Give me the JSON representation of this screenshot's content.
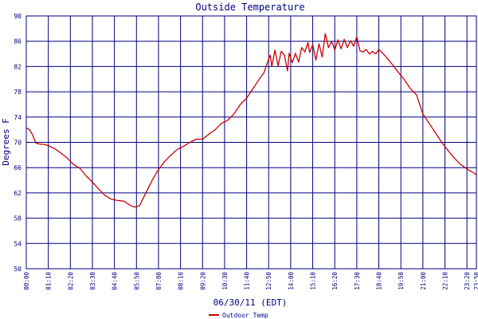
{
  "chart_data": {
    "type": "line",
    "title": "Outside Temperature",
    "xlabel": "06/30/11 (EDT)",
    "ylabel": "Degrees F",
    "ylim": [
      50,
      90
    ],
    "yticks": [
      50,
      54,
      58,
      62,
      66,
      70,
      74,
      78,
      82,
      86,
      90
    ],
    "xlim": [
      0,
      1430
    ],
    "xticks": [
      {
        "min": 0,
        "label": "00:00"
      },
      {
        "min": 70,
        "label": "01:10"
      },
      {
        "min": 140,
        "label": "02:20"
      },
      {
        "min": 210,
        "label": "03:30"
      },
      {
        "min": 280,
        "label": "04:40"
      },
      {
        "min": 350,
        "label": "05:50"
      },
      {
        "min": 420,
        "label": "07:00"
      },
      {
        "min": 490,
        "label": "08:10"
      },
      {
        "min": 560,
        "label": "09:20"
      },
      {
        "min": 630,
        "label": "10:30"
      },
      {
        "min": 700,
        "label": "11:40"
      },
      {
        "min": 770,
        "label": "12:50"
      },
      {
        "min": 840,
        "label": "14:00"
      },
      {
        "min": 910,
        "label": "15:10"
      },
      {
        "min": 980,
        "label": "16:20"
      },
      {
        "min": 1050,
        "label": "17:30"
      },
      {
        "min": 1120,
        "label": "18:40"
      },
      {
        "min": 1190,
        "label": "19:50"
      },
      {
        "min": 1260,
        "label": "21:00"
      },
      {
        "min": 1330,
        "label": "22:10"
      },
      {
        "min": 1400,
        "label": "23:20"
      },
      {
        "min": 1430,
        "label": "23:50"
      }
    ],
    "grid": true,
    "legend_position": "bottom-center",
    "colors": {
      "line": "#cc0000",
      "grid": "#000080",
      "text": "#000080",
      "background": "#ffffff"
    },
    "series": [
      {
        "name": "Outdoor Temp",
        "points": [
          [
            0,
            72.3
          ],
          [
            10,
            72.0
          ],
          [
            20,
            71.2
          ],
          [
            30,
            69.9
          ],
          [
            45,
            69.7
          ],
          [
            55,
            69.7
          ],
          [
            70,
            69.5
          ],
          [
            90,
            69.0
          ],
          [
            110,
            68.3
          ],
          [
            130,
            67.5
          ],
          [
            150,
            66.5
          ],
          [
            170,
            65.9
          ],
          [
            190,
            64.7
          ],
          [
            210,
            63.7
          ],
          [
            230,
            62.6
          ],
          [
            250,
            61.6
          ],
          [
            270,
            61.0
          ],
          [
            290,
            60.8
          ],
          [
            310,
            60.7
          ],
          [
            325,
            60.2
          ],
          [
            340,
            59.8
          ],
          [
            350,
            59.8
          ],
          [
            360,
            60.0
          ],
          [
            370,
            61.0
          ],
          [
            385,
            62.5
          ],
          [
            400,
            64.0
          ],
          [
            420,
            65.7
          ],
          [
            440,
            67.0
          ],
          [
            460,
            68.0
          ],
          [
            480,
            68.9
          ],
          [
            500,
            69.4
          ],
          [
            520,
            70.0
          ],
          [
            540,
            70.5
          ],
          [
            560,
            70.5
          ],
          [
            580,
            71.3
          ],
          [
            600,
            72.0
          ],
          [
            620,
            73.0
          ],
          [
            640,
            73.5
          ],
          [
            660,
            74.5
          ],
          [
            680,
            76.0
          ],
          [
            700,
            77.0
          ],
          [
            720,
            78.5
          ],
          [
            740,
            80.0
          ],
          [
            755,
            81.0
          ],
          [
            765,
            82.5
          ],
          [
            775,
            83.8
          ],
          [
            780,
            82.0
          ],
          [
            790,
            84.6
          ],
          [
            800,
            82.1
          ],
          [
            810,
            84.4
          ],
          [
            820,
            83.8
          ],
          [
            830,
            81.3
          ],
          [
            835,
            84.1
          ],
          [
            845,
            82.6
          ],
          [
            855,
            84.1
          ],
          [
            865,
            82.7
          ],
          [
            875,
            85.0
          ],
          [
            885,
            84.3
          ],
          [
            895,
            85.8
          ],
          [
            900,
            84.2
          ],
          [
            910,
            85.5
          ],
          [
            920,
            83.0
          ],
          [
            930,
            85.6
          ],
          [
            940,
            83.5
          ],
          [
            950,
            87.2
          ],
          [
            960,
            85.0
          ],
          [
            970,
            86.0
          ],
          [
            980,
            84.6
          ],
          [
            990,
            86.2
          ],
          [
            1000,
            84.8
          ],
          [
            1010,
            86.3
          ],
          [
            1020,
            85.0
          ],
          [
            1030,
            86.1
          ],
          [
            1040,
            85.2
          ],
          [
            1050,
            86.7
          ],
          [
            1060,
            84.5
          ],
          [
            1070,
            84.3
          ],
          [
            1080,
            84.7
          ],
          [
            1090,
            84.0
          ],
          [
            1100,
            84.4
          ],
          [
            1110,
            84.0
          ],
          [
            1120,
            84.7
          ],
          [
            1140,
            83.7
          ],
          [
            1160,
            82.5
          ],
          [
            1180,
            81.2
          ],
          [
            1200,
            80.0
          ],
          [
            1220,
            78.5
          ],
          [
            1240,
            77.5
          ],
          [
            1260,
            74.5
          ],
          [
            1280,
            73.0
          ],
          [
            1300,
            71.5
          ],
          [
            1320,
            70.0
          ],
          [
            1340,
            68.7
          ],
          [
            1360,
            67.5
          ],
          [
            1380,
            66.5
          ],
          [
            1400,
            65.8
          ],
          [
            1420,
            65.2
          ],
          [
            1430,
            64.9
          ]
        ]
      }
    ]
  }
}
